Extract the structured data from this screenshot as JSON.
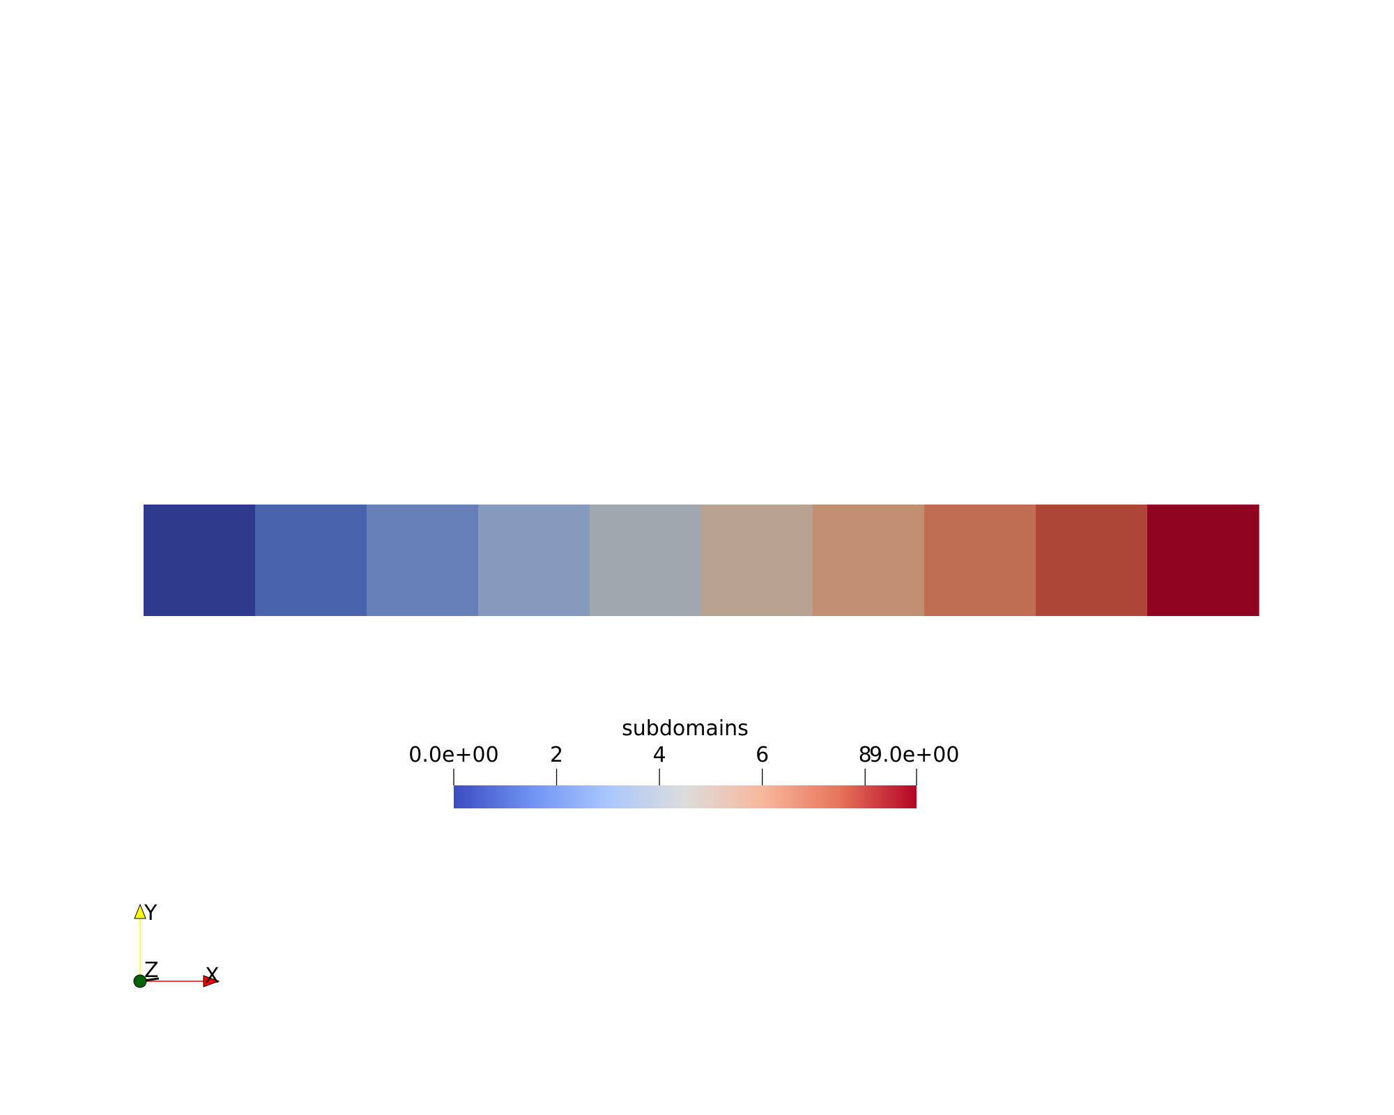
{
  "mesh": {
    "subdomain_count": 10,
    "cell_colors": [
      "#2f3a8c",
      "#4963ac",
      "#6880ba",
      "#869abd",
      "#a0a7ae",
      "#b8a392",
      "#c18f72",
      "#bf6e51",
      "#ad4636",
      "#8f0420"
    ]
  },
  "colorbar": {
    "title": "subdomains",
    "range": [
      0,
      9
    ],
    "ticks": [
      {
        "value": 0,
        "label": "0.0e+00"
      },
      {
        "value": 2,
        "label": "2"
      },
      {
        "value": 4,
        "label": "4"
      },
      {
        "value": 6,
        "label": "6"
      },
      {
        "value": 8,
        "label": "8"
      },
      {
        "value": 9,
        "label": "9.0e+00"
      }
    ],
    "colormap": [
      "#3b4cc0",
      "#6f92f3",
      "#aac7fd",
      "#dddcdc",
      "#f7b89c",
      "#e7745b",
      "#b40426"
    ]
  },
  "axes": {
    "x_label": "X",
    "y_label": "Y",
    "z_label": "Z",
    "x_color": "#ff0000",
    "y_color": "#ffff00",
    "z_color": "#006400"
  }
}
